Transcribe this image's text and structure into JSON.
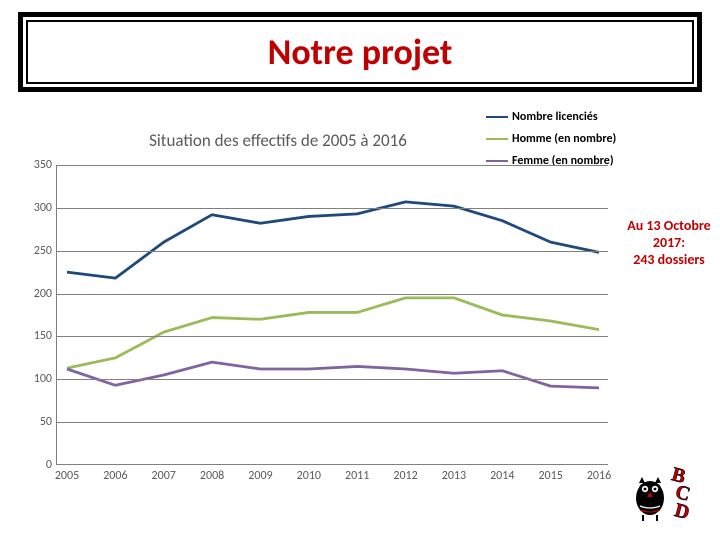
{
  "title": "Notre projet",
  "title_color": "#c00000",
  "chart": {
    "title": "Situation des effectifs de 2005 à 2016",
    "type": "line",
    "x_categories": [
      "2005",
      "2006",
      "2007",
      "2008",
      "2009",
      "2010",
      "2011",
      "2012",
      "2013",
      "2014",
      "2015",
      "2016"
    ],
    "ylim": [
      0,
      350
    ],
    "ytick_step": 50,
    "grid_color": "#808080",
    "background_color": "#ffffff",
    "label_fontsize": 12,
    "title_fontsize": 17,
    "line_width": 2.8,
    "series": [
      {
        "name": "Nombre licenciés",
        "color": "#1f497d",
        "values": [
          225,
          218,
          260,
          292,
          282,
          290,
          293,
          307,
          302,
          285,
          260,
          248
        ]
      },
      {
        "name": "Homme  (en nombre)",
        "color": "#9bbb59",
        "values": [
          113,
          125,
          155,
          172,
          170,
          178,
          178,
          195,
          195,
          175,
          168,
          158
        ]
      },
      {
        "name": "Femme (en nombre)",
        "color": "#8064a2",
        "values": [
          112,
          93,
          105,
          120,
          112,
          112,
          115,
          112,
          107,
          110,
          92,
          90
        ]
      }
    ]
  },
  "annotation": {
    "lines": [
      "Au 13 Octobre",
      "2017:",
      "243 dossiers"
    ],
    "color": "#c00000"
  },
  "logo": {
    "letters": "BCD",
    "letter_color": "#c00000",
    "owl_color": "#000000"
  }
}
